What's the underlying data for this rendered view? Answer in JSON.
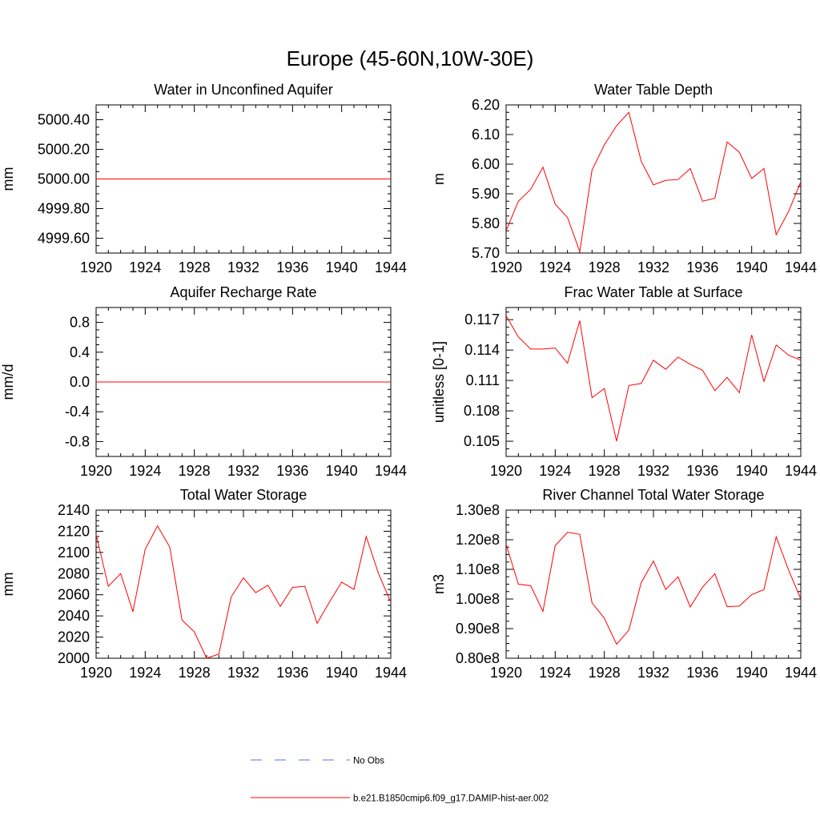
{
  "title": "Europe (45-60N,10W-30E)",
  "colors": {
    "model": "#ff0000",
    "obs": "#5b6fd6",
    "axis": "#000000"
  },
  "legend": [
    {
      "label": "No Obs",
      "style": "dashed"
    },
    {
      "label": "b.e21.B1850cmip6.f09_g17.DAMIP-hist-aer.002",
      "style": "solid"
    }
  ],
  "chart_data": [
    {
      "type": "line",
      "title": "Water in Unconfined Aquifer",
      "ylabel": "mm",
      "xlim": [
        1920,
        1944
      ],
      "ylim": [
        4999.5,
        5000.5
      ],
      "xticks": [
        1920,
        1924,
        1928,
        1932,
        1936,
        1940,
        1944
      ],
      "xtick_labels": [
        "1920",
        "1924",
        "1928",
        "1932",
        "1936",
        "1940",
        "1944"
      ],
      "yticks": [
        4999.6,
        4999.8,
        5000.0,
        5000.2,
        5000.4
      ],
      "ytick_labels": [
        "4999.60",
        "4999.80",
        "5000.00",
        "5000.20",
        "5000.40"
      ],
      "x": [
        1920,
        1921,
        1922,
        1923,
        1924,
        1925,
        1926,
        1927,
        1928,
        1929,
        1930,
        1931,
        1932,
        1933,
        1934,
        1935,
        1936,
        1937,
        1938,
        1939,
        1940,
        1941,
        1942,
        1943,
        1944
      ],
      "series": [
        {
          "values": [
            5000,
            5000,
            5000,
            5000,
            5000,
            5000,
            5000,
            5000,
            5000,
            5000,
            5000,
            5000,
            5000,
            5000,
            5000,
            5000,
            5000,
            5000,
            5000,
            5000,
            5000,
            5000,
            5000,
            5000,
            5000
          ]
        }
      ]
    },
    {
      "type": "line",
      "title": "Water Table Depth",
      "ylabel": "m",
      "xlim": [
        1920,
        1944
      ],
      "ylim": [
        5.7,
        6.2
      ],
      "xticks": [
        1920,
        1924,
        1928,
        1932,
        1936,
        1940,
        1944
      ],
      "xtick_labels": [
        "1920",
        "1924",
        "1928",
        "1932",
        "1936",
        "1940",
        "1944"
      ],
      "yticks": [
        5.7,
        5.8,
        5.9,
        6.0,
        6.1,
        6.2
      ],
      "ytick_labels": [
        "5.70",
        "5.80",
        "5.90",
        "6.00",
        "6.10",
        "6.20"
      ],
      "x": [
        1920,
        1921,
        1922,
        1923,
        1924,
        1925,
        1926,
        1927,
        1928,
        1929,
        1930,
        1931,
        1932,
        1933,
        1934,
        1935,
        1936,
        1937,
        1938,
        1939,
        1940,
        1941,
        1942,
        1943,
        1944
      ],
      "series": [
        {
          "values": [
            5.775,
            5.875,
            5.915,
            5.99,
            5.865,
            5.82,
            5.705,
            5.98,
            6.065,
            6.13,
            6.175,
            6.01,
            5.93,
            5.945,
            5.948,
            5.985,
            5.875,
            5.885,
            6.075,
            6.04,
            5.952,
            5.985,
            5.762,
            5.84,
            5.94
          ]
        }
      ]
    },
    {
      "type": "line",
      "title": "Aquifer Recharge Rate",
      "ylabel": "mm/d",
      "xlim": [
        1920,
        1944
      ],
      "ylim": [
        -1.0,
        1.0
      ],
      "xticks": [
        1920,
        1924,
        1928,
        1932,
        1936,
        1940,
        1944
      ],
      "xtick_labels": [
        "1920",
        "1924",
        "1928",
        "1932",
        "1936",
        "1940",
        "1944"
      ],
      "yticks": [
        -0.8,
        -0.4,
        0.0,
        0.4,
        0.8
      ],
      "ytick_labels": [
        "-0.8",
        "-0.4",
        "0.0",
        "0.4",
        "0.8"
      ],
      "x": [
        1920,
        1921,
        1922,
        1923,
        1924,
        1925,
        1926,
        1927,
        1928,
        1929,
        1930,
        1931,
        1932,
        1933,
        1934,
        1935,
        1936,
        1937,
        1938,
        1939,
        1940,
        1941,
        1942,
        1943,
        1944
      ],
      "series": [
        {
          "values": [
            0,
            0,
            0,
            0,
            0,
            0,
            0,
            0,
            0,
            0,
            0,
            0,
            0,
            0,
            0,
            0,
            0,
            0,
            0,
            0,
            0,
            0,
            0,
            0,
            0
          ]
        }
      ]
    },
    {
      "type": "line",
      "title": "Frac Water Table at Surface",
      "ylabel": "unitless [0-1]",
      "xlim": [
        1920,
        1944
      ],
      "ylim": [
        0.1035,
        0.1182
      ],
      "xticks": [
        1920,
        1924,
        1928,
        1932,
        1936,
        1940,
        1944
      ],
      "xtick_labels": [
        "1920",
        "1924",
        "1928",
        "1932",
        "1936",
        "1940",
        "1944"
      ],
      "yticks": [
        0.105,
        0.108,
        0.111,
        0.114,
        0.117
      ],
      "ytick_labels": [
        "0.105",
        "0.108",
        "0.111",
        "0.114",
        "0.117"
      ],
      "x": [
        1920,
        1921,
        1922,
        1923,
        1924,
        1925,
        1926,
        1927,
        1928,
        1929,
        1930,
        1931,
        1932,
        1933,
        1934,
        1935,
        1936,
        1937,
        1938,
        1939,
        1940,
        1941,
        1942,
        1943,
        1944
      ],
      "series": [
        {
          "values": [
            0.1174,
            0.1153,
            0.1141,
            0.1141,
            0.1142,
            0.1127,
            0.1169,
            0.1093,
            0.1102,
            0.105,
            0.1105,
            0.1107,
            0.113,
            0.1121,
            0.1133,
            0.1126,
            0.112,
            0.11,
            0.1113,
            0.1098,
            0.1155,
            0.1109,
            0.1145,
            0.1135,
            0.113
          ]
        }
      ]
    },
    {
      "type": "line",
      "title": "Total Water Storage",
      "ylabel": "mm",
      "xlim": [
        1920,
        1944
      ],
      "ylim": [
        2000,
        2140
      ],
      "xticks": [
        1920,
        1924,
        1928,
        1932,
        1936,
        1940,
        1944
      ],
      "xtick_labels": [
        "1920",
        "1924",
        "1928",
        "1932",
        "1936",
        "1940",
        "1944"
      ],
      "yticks": [
        2000,
        2020,
        2040,
        2060,
        2080,
        2100,
        2120,
        2140
      ],
      "ytick_labels": [
        "2000",
        "2020",
        "2040",
        "2060",
        "2080",
        "2100",
        "2120",
        "2140"
      ],
      "x": [
        1920,
        1921,
        1922,
        1923,
        1924,
        1925,
        1926,
        1927,
        1928,
        1929,
        1930,
        1931,
        1932,
        1933,
        1934,
        1935,
        1936,
        1937,
        1938,
        1939,
        1940,
        1941,
        1942,
        1943,
        1944
      ],
      "series": [
        {
          "values": [
            2117,
            2068,
            2080,
            2044,
            2103,
            2125,
            2105,
            2036,
            2025,
            2000,
            2004,
            2058,
            2076,
            2062,
            2069,
            2049,
            2067,
            2068,
            2033,
            2053,
            2072,
            2065,
            2115,
            2080,
            2053
          ]
        }
      ]
    },
    {
      "type": "line",
      "title": "River Channel Total Water Storage",
      "ylabel": "m3",
      "xlim": [
        1920,
        1944
      ],
      "ylim": [
        80000000,
        130000000
      ],
      "xticks": [
        1920,
        1924,
        1928,
        1932,
        1936,
        1940,
        1944
      ],
      "xtick_labels": [
        "1920",
        "1924",
        "1928",
        "1932",
        "1936",
        "1940",
        "1944"
      ],
      "yticks": [
        80000000,
        90000000,
        100000000,
        110000000,
        120000000,
        130000000
      ],
      "ytick_labels": [
        "0.80e8",
        "0.90e8",
        "1.00e8",
        "1.10e8",
        "1.20e8",
        "1.30e8"
      ],
      "x": [
        1920,
        1921,
        1922,
        1923,
        1924,
        1925,
        1926,
        1927,
        1928,
        1929,
        1930,
        1931,
        1932,
        1933,
        1934,
        1935,
        1936,
        1937,
        1938,
        1939,
        1940,
        1941,
        1942,
        1943,
        1944
      ],
      "series": [
        {
          "values": [
            118500000,
            105000000,
            104500000,
            95800000,
            118000000,
            122500000,
            121800000,
            98700000,
            93500000,
            84700000,
            89500000,
            105500000,
            112800000,
            103200000,
            107500000,
            97300000,
            104000000,
            108500000,
            97400000,
            97600000,
            101500000,
            103200000,
            121000000,
            109800000,
            100000000
          ]
        }
      ]
    }
  ]
}
